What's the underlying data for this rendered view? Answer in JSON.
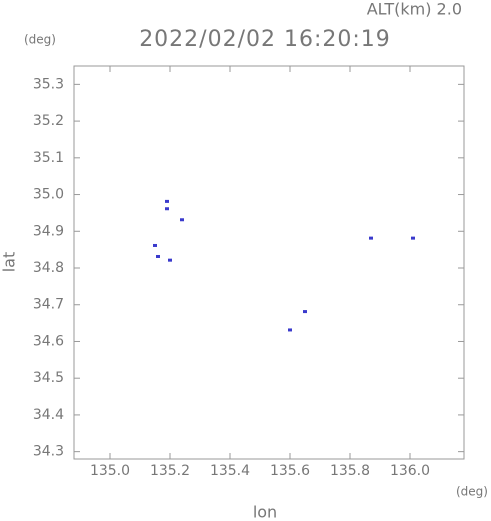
{
  "chart_data": {
    "type": "scatter",
    "title": "2022/02/02 16:20:19",
    "subtitle": "ALT(km) 2.0",
    "y_unit": "(deg)",
    "x_unit": "(deg)",
    "xlabel": "lon",
    "ylabel": "lat",
    "color": "#3a3acc",
    "x": [
      135.19,
      135.19,
      135.24,
      135.15,
      135.16,
      135.2,
      135.87,
      136.01,
      135.6,
      135.65
    ],
    "values": [
      34.98,
      34.96,
      34.93,
      34.86,
      34.83,
      34.82,
      34.88,
      34.88,
      34.63,
      34.68
    ],
    "xlim": [
      134.88,
      136.18
    ],
    "ylim": [
      34.28,
      35.35
    ],
    "xticks": [
      {
        "value": 135,
        "label": "135.0"
      },
      135.2,
      135.4,
      135.6,
      135.8,
      {
        "value": 136,
        "label": "136.0"
      }
    ],
    "yticks": [
      34.3,
      34.4,
      34.5,
      34.6,
      34.7,
      34.8,
      34.9,
      {
        "value": 35,
        "label": "35.0"
      },
      35.1,
      35.2,
      35.3
    ]
  }
}
